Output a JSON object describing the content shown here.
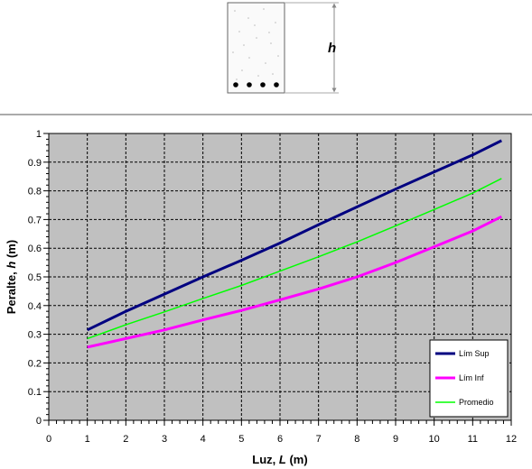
{
  "diagram": {
    "dimension_label": "h"
  },
  "chart_data": {
    "type": "line",
    "xlabel_prefix": "Luz, ",
    "xlabel_var": "L",
    "xlabel_unit": "  (m)",
    "ylabel_prefix": "Peralte, ",
    "ylabel_var": "h",
    "ylabel_unit": "  (m)",
    "xlim": [
      0,
      12
    ],
    "ylim": [
      0,
      1
    ],
    "xticks": [
      "0",
      "1",
      "2",
      "3",
      "4",
      "5",
      "6",
      "7",
      "8",
      "9",
      "10",
      "11",
      "12"
    ],
    "yticks": [
      "0",
      "0.1",
      "0.2",
      "0.3",
      "0.4",
      "0.5",
      "0.6",
      "0.7",
      "0.8",
      "0.9",
      "1"
    ],
    "grid": true,
    "legend_position": "bottom-right",
    "plot_background": "#c0c0c0",
    "series": [
      {
        "name": "Lím Sup",
        "color": "#000080",
        "x": [
          1,
          2,
          3,
          4,
          5,
          6,
          7,
          8,
          9,
          10,
          11,
          11.75
        ],
        "y": [
          0.315,
          0.38,
          0.44,
          0.5,
          0.558,
          0.618,
          0.682,
          0.744,
          0.806,
          0.866,
          0.925,
          0.975
        ]
      },
      {
        "name": "Lím Inf",
        "color": "#ff00ff",
        "x": [
          1,
          2,
          3,
          4,
          5,
          6,
          7,
          8,
          9,
          10,
          11,
          11.75
        ],
        "y": [
          0.255,
          0.285,
          0.315,
          0.35,
          0.383,
          0.42,
          0.458,
          0.5,
          0.55,
          0.605,
          0.66,
          0.71
        ]
      },
      {
        "name": "Promedio",
        "color": "#00ff00",
        "x": [
          1,
          2,
          3,
          4,
          5,
          6,
          7,
          8,
          9,
          10,
          11,
          11.75
        ],
        "y": [
          0.285,
          0.333,
          0.378,
          0.425,
          0.47,
          0.52,
          0.57,
          0.622,
          0.678,
          0.735,
          0.792,
          0.843
        ]
      }
    ]
  }
}
